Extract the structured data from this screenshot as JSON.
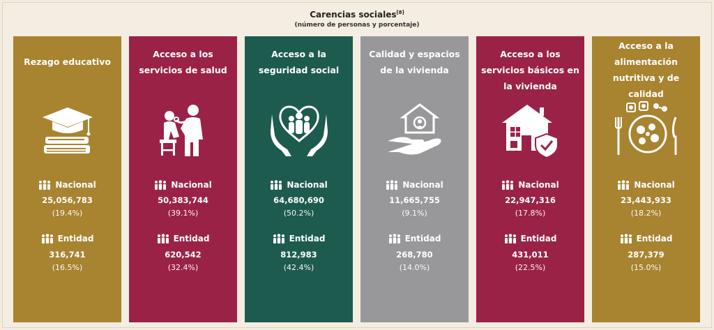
{
  "header": {
    "title": "Carencias sociales",
    "footnote": "[8]",
    "subtitle": "(número de personas y porcentaje)"
  },
  "labels": {
    "nacional": "Nacional",
    "entidad": "Entidad"
  },
  "cards": [
    {
      "title": "Rezago educativo",
      "icon": "graduation-cap-books-icon",
      "color": "#a88330",
      "nacional_value": "25,056,783",
      "nacional_pct": "(19.4%)",
      "entidad_value": "316,741",
      "entidad_pct": "(16.5%)"
    },
    {
      "title": "Acceso a los servicios de salud",
      "icon": "doctor-patient-icon",
      "color": "#9b2247",
      "nacional_value": "50,383,744",
      "nacional_pct": "(39.1%)",
      "entidad_value": "620,542",
      "entidad_pct": "(32.4%)"
    },
    {
      "title": "Acceso a la seguridad social",
      "icon": "family-heart-hands-icon",
      "color": "#1e5b4f",
      "nacional_value": "64,680,690",
      "nacional_pct": "(50.2%)",
      "entidad_value": "812,983",
      "entidad_pct": "(42.4%)"
    },
    {
      "title": "Calidad y espacios de la vivienda",
      "icon": "house-hand-icon",
      "color": "#98989a",
      "nacional_value": "11,665,755",
      "nacional_pct": "(9.1%)",
      "entidad_value": "268,780",
      "entidad_pct": "(14.0%)"
    },
    {
      "title": "Acceso a los servicios básicos en la vivienda",
      "icon": "house-shield-icon",
      "color": "#9b2247",
      "nacional_value": "22,947,316",
      "nacional_pct": "(17.8%)",
      "entidad_value": "431,011",
      "entidad_pct": "(22.5%)"
    },
    {
      "title": "Acceso a la alimentación nutritiva y de calidad",
      "icon": "food-plate-icon",
      "color": "#a88330",
      "nacional_value": "23,443,933",
      "nacional_pct": "(18.2%)",
      "entidad_value": "287,379",
      "entidad_pct": "(15.0%)"
    }
  ]
}
